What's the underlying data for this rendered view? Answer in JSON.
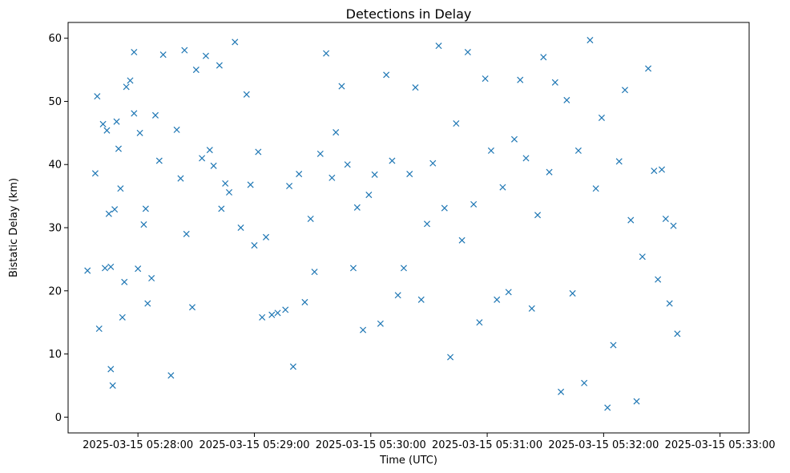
{
  "chart_data": {
    "type": "scatter",
    "title": "Detections in Delay",
    "xlabel": "Time (UTC)",
    "ylabel": "Bistatic Delay (km)",
    "marker": "x",
    "color": "#1f77b4",
    "grid": false,
    "xlim": [
      "2025-03-15 05:27:24",
      "2025-03-15 05:33:15"
    ],
    "ylim": [
      -2.5,
      62.5
    ],
    "x_ticks": [
      "2025-03-15 05:28:00",
      "2025-03-15 05:29:00",
      "2025-03-15 05:30:00",
      "2025-03-15 05:31:00",
      "2025-03-15 05:32:00",
      "2025-03-15 05:33:00"
    ],
    "y_ticks": [
      "0",
      "10",
      "20",
      "30",
      "40",
      "50",
      "60"
    ],
    "series": [
      {
        "points": [
          [
            "05:27:34",
            23.2
          ],
          [
            "05:27:38",
            38.6
          ],
          [
            "05:27:39",
            50.8
          ],
          [
            "05:27:40",
            14.0
          ],
          [
            "05:27:42",
            46.4
          ],
          [
            "05:27:43",
            23.6
          ],
          [
            "05:27:44",
            45.4
          ],
          [
            "05:27:45",
            32.2
          ],
          [
            "05:27:46",
            23.8
          ],
          [
            "05:27:46",
            7.6
          ],
          [
            "05:27:47",
            5.0
          ],
          [
            "05:27:48",
            32.9
          ],
          [
            "05:27:49",
            46.8
          ],
          [
            "05:27:50",
            42.5
          ],
          [
            "05:27:51",
            36.2
          ],
          [
            "05:27:52",
            15.8
          ],
          [
            "05:27:53",
            21.4
          ],
          [
            "05:27:54",
            52.3
          ],
          [
            "05:27:56",
            53.3
          ],
          [
            "05:27:58",
            57.8
          ],
          [
            "05:27:58",
            48.1
          ],
          [
            "05:28:00",
            23.5
          ],
          [
            "05:28:01",
            45.0
          ],
          [
            "05:28:03",
            30.5
          ],
          [
            "05:28:04",
            33.0
          ],
          [
            "05:28:05",
            18.0
          ],
          [
            "05:28:07",
            22.0
          ],
          [
            "05:28:09",
            47.8
          ],
          [
            "05:28:11",
            40.6
          ],
          [
            "05:28:13",
            57.4
          ],
          [
            "05:28:17",
            6.6
          ],
          [
            "05:28:20",
            45.5
          ],
          [
            "05:28:22",
            37.8
          ],
          [
            "05:28:24",
            58.1
          ],
          [
            "05:28:25",
            29.0
          ],
          [
            "05:28:28",
            17.4
          ],
          [
            "05:28:30",
            55.0
          ],
          [
            "05:28:33",
            41.0
          ],
          [
            "05:28:35",
            57.2
          ],
          [
            "05:28:37",
            42.3
          ],
          [
            "05:28:39",
            39.8
          ],
          [
            "05:28:42",
            55.7
          ],
          [
            "05:28:43",
            33.0
          ],
          [
            "05:28:45",
            37.0
          ],
          [
            "05:28:47",
            35.6
          ],
          [
            "05:28:50",
            59.4
          ],
          [
            "05:28:53",
            30.0
          ],
          [
            "05:28:56",
            51.1
          ],
          [
            "05:28:58",
            36.8
          ],
          [
            "05:29:00",
            27.2
          ],
          [
            "05:29:02",
            42.0
          ],
          [
            "05:29:04",
            15.8
          ],
          [
            "05:29:06",
            28.5
          ],
          [
            "05:29:09",
            16.2
          ],
          [
            "05:29:12",
            16.5
          ],
          [
            "05:29:16",
            17.0
          ],
          [
            "05:29:18",
            36.6
          ],
          [
            "05:29:20",
            8.0
          ],
          [
            "05:29:23",
            38.5
          ],
          [
            "05:29:26",
            18.2
          ],
          [
            "05:29:29",
            31.4
          ],
          [
            "05:29:31",
            23.0
          ],
          [
            "05:29:34",
            41.7
          ],
          [
            "05:29:37",
            57.6
          ],
          [
            "05:29:40",
            37.9
          ],
          [
            "05:29:42",
            45.1
          ],
          [
            "05:29:45",
            52.4
          ],
          [
            "05:29:48",
            40.0
          ],
          [
            "05:29:51",
            23.6
          ],
          [
            "05:29:53",
            33.2
          ],
          [
            "05:29:56",
            13.8
          ],
          [
            "05:29:59",
            35.2
          ],
          [
            "05:30:02",
            38.4
          ],
          [
            "05:30:05",
            14.8
          ],
          [
            "05:30:08",
            54.2
          ],
          [
            "05:30:11",
            40.6
          ],
          [
            "05:30:14",
            19.3
          ],
          [
            "05:30:17",
            23.6
          ],
          [
            "05:30:20",
            38.5
          ],
          [
            "05:30:23",
            52.2
          ],
          [
            "05:30:26",
            18.6
          ],
          [
            "05:30:29",
            30.6
          ],
          [
            "05:30:32",
            40.2
          ],
          [
            "05:30:35",
            58.8
          ],
          [
            "05:30:38",
            33.1
          ],
          [
            "05:30:41",
            9.5
          ],
          [
            "05:30:44",
            46.5
          ],
          [
            "05:30:47",
            28.0
          ],
          [
            "05:30:50",
            57.8
          ],
          [
            "05:30:53",
            33.7
          ],
          [
            "05:30:56",
            15.0
          ],
          [
            "05:30:59",
            53.6
          ],
          [
            "05:31:02",
            42.2
          ],
          [
            "05:31:05",
            18.6
          ],
          [
            "05:31:08",
            36.4
          ],
          [
            "05:31:11",
            19.8
          ],
          [
            "05:31:14",
            44.0
          ],
          [
            "05:31:17",
            53.4
          ],
          [
            "05:31:20",
            41.0
          ],
          [
            "05:31:23",
            17.2
          ],
          [
            "05:31:26",
            32.0
          ],
          [
            "05:31:29",
            57.0
          ],
          [
            "05:31:32",
            38.8
          ],
          [
            "05:31:35",
            53.0
          ],
          [
            "05:31:38",
            4.0
          ],
          [
            "05:31:41",
            50.2
          ],
          [
            "05:31:44",
            19.6
          ],
          [
            "05:31:47",
            42.2
          ],
          [
            "05:31:50",
            5.4
          ],
          [
            "05:31:53",
            59.7
          ],
          [
            "05:31:56",
            36.2
          ],
          [
            "05:31:59",
            47.4
          ],
          [
            "05:32:02",
            1.5
          ],
          [
            "05:32:05",
            11.4
          ],
          [
            "05:32:08",
            40.5
          ],
          [
            "05:32:11",
            51.8
          ],
          [
            "05:32:14",
            31.2
          ],
          [
            "05:32:17",
            2.5
          ],
          [
            "05:32:20",
            25.4
          ],
          [
            "05:32:23",
            55.2
          ],
          [
            "05:32:26",
            39.0
          ],
          [
            "05:32:28",
            21.8
          ],
          [
            "05:32:30",
            39.2
          ],
          [
            "05:32:32",
            31.4
          ],
          [
            "05:32:34",
            18.0
          ],
          [
            "05:32:36",
            30.3
          ],
          [
            "05:32:38",
            13.2
          ]
        ]
      }
    ]
  }
}
